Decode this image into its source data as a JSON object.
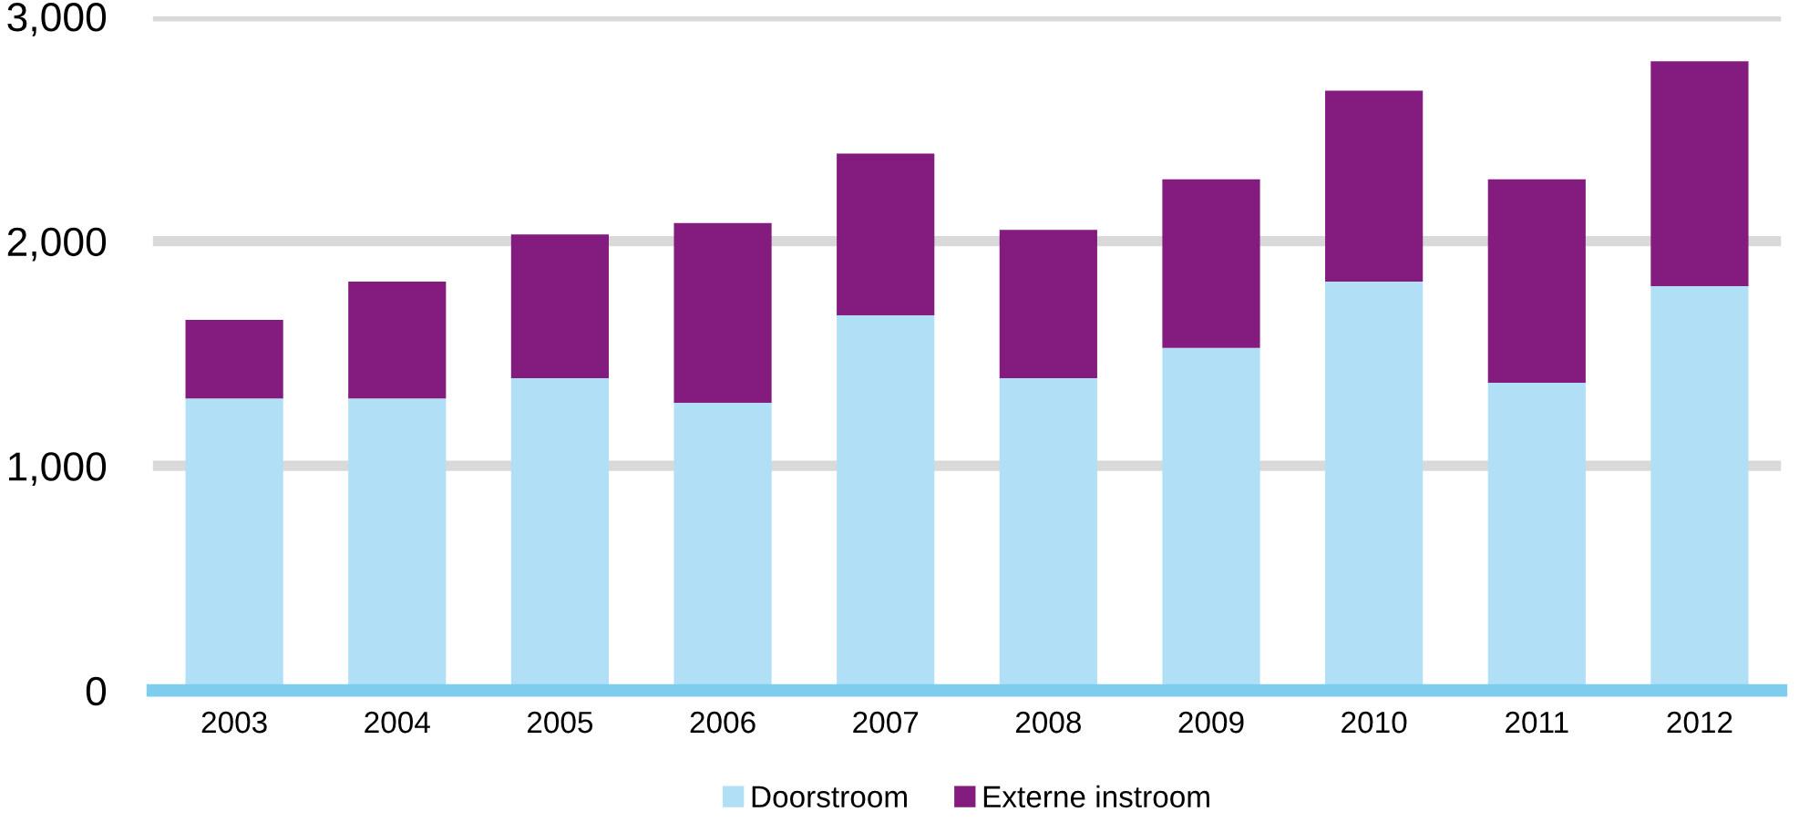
{
  "chart_data": {
    "type": "bar",
    "stacked": true,
    "categories": [
      "2003",
      "2004",
      "2005",
      "2006",
      "2007",
      "2008",
      "2009",
      "2010",
      "2011",
      "2012"
    ],
    "series": [
      {
        "name": "Doorstroom",
        "color": "#b1dff6",
        "values": [
          1300,
          1300,
          1390,
          1280,
          1670,
          1390,
          1525,
          1820,
          1370,
          1800
        ]
      },
      {
        "name": "Externe instroom",
        "color": "#841b7e",
        "values": [
          350,
          520,
          640,
          800,
          720,
          660,
          750,
          850,
          905,
          1000
        ]
      }
    ],
    "ylim": [
      0,
      3000
    ],
    "yticks": [
      {
        "value": 0,
        "label": "0"
      },
      {
        "value": 1000,
        "label": "1,000"
      },
      {
        "value": 2000,
        "label": "2,000"
      },
      {
        "value": 3000,
        "label": "3,000"
      }
    ],
    "grid": "y",
    "legend": "bottom"
  }
}
